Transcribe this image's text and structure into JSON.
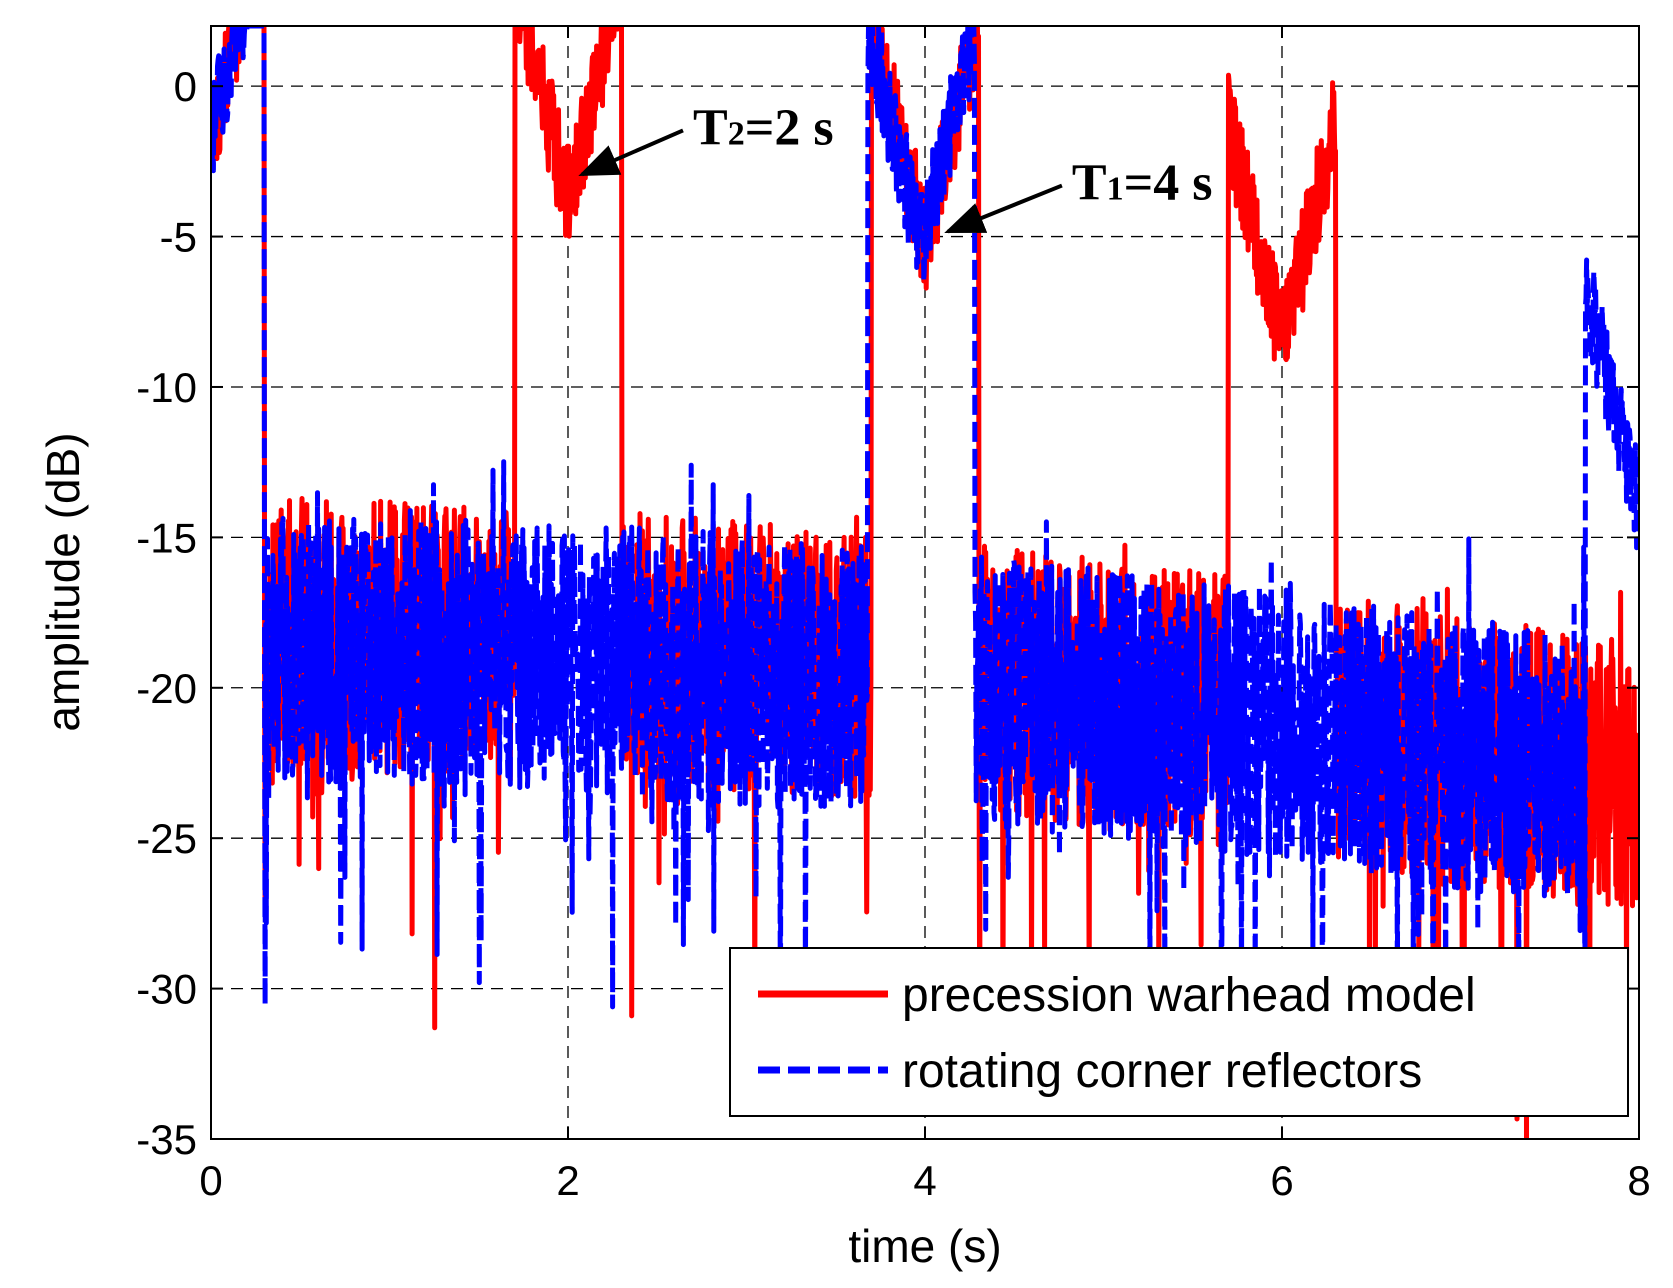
{
  "chart_data": {
    "type": "line",
    "title": "",
    "xlabel": "time (s)",
    "ylabel": "amplitude (dB)",
    "xlim": [
      0,
      8
    ],
    "ylim": [
      -35,
      2
    ],
    "xticks": [
      0,
      2,
      4,
      6,
      8
    ],
    "yticks": [
      0,
      -5,
      -10,
      -15,
      -20,
      -25,
      -30,
      -35
    ],
    "xtick_labels": [
      "0",
      "2",
      "4",
      "6",
      "8"
    ],
    "ytick_labels": [
      "0",
      "-5",
      "-10",
      "-15",
      "-20",
      "-25",
      "-30",
      "-35"
    ],
    "grid": true,
    "legend_position": "bottom-right",
    "series": [
      {
        "name": "precession warhead model",
        "color": "#ff0000",
        "style": "solid",
        "peaks": [
          {
            "t": 0.0,
            "v": 0
          },
          {
            "t": 2.0,
            "v": -2
          },
          {
            "t": 4.0,
            "v": -3.4
          },
          {
            "t": 6.0,
            "v": -6.8
          }
        ],
        "trend": [
          [
            0,
            -18
          ],
          [
            2,
            -18.5
          ],
          [
            4,
            -19.5
          ],
          [
            6,
            -21
          ],
          [
            8,
            -23
          ]
        ],
        "seed": 7
      },
      {
        "name": "rotating corner reflectors",
        "color": "#0000ff",
        "style": "dashed",
        "peaks": [
          {
            "t": 0.0,
            "v": 0
          },
          {
            "t": 3.98,
            "v": -3.6
          },
          {
            "t": 8.0,
            "v": -12.3
          }
        ],
        "trend": [
          [
            0,
            -18.5
          ],
          [
            2,
            -19
          ],
          [
            4,
            -19.8
          ],
          [
            6,
            -21.2
          ],
          [
            8,
            -23.2
          ]
        ],
        "seed": 23
      }
    ],
    "annotations": [
      {
        "main": "T",
        "sub": "2",
        "rest": "=2 s",
        "t": 2.0,
        "v": -3.0
      },
      {
        "main": "T",
        "sub": "1",
        "rest": "=4 s",
        "t": 4.05,
        "v": -4.9
      }
    ]
  }
}
